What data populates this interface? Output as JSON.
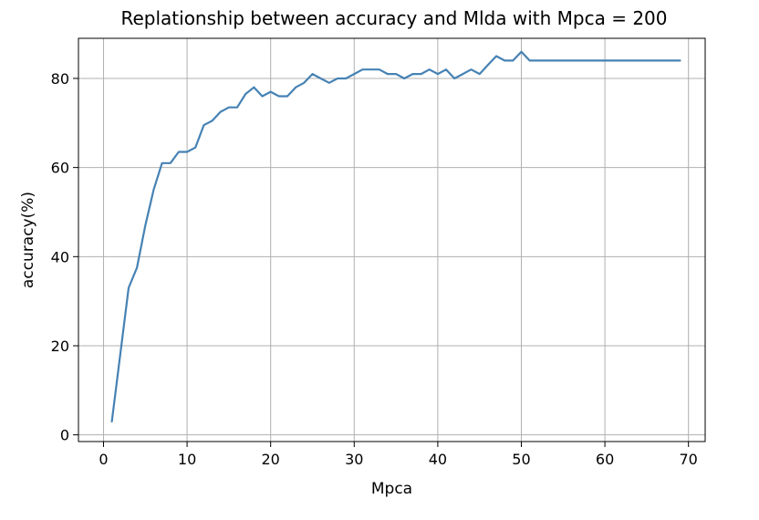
{
  "chart_data": {
    "type": "line",
    "title": "Replationship between accuracy and Mlda with Mpca = 200",
    "xlabel": "Mpca",
    "ylabel": "accuracy(%)",
    "xlim": [
      -3,
      72
    ],
    "ylim": [
      -1.5,
      89
    ],
    "xticks": [
      0,
      10,
      20,
      30,
      40,
      50,
      60,
      70
    ],
    "yticks": [
      0,
      20,
      40,
      60,
      80
    ],
    "xtick_labels": [
      "0",
      "10",
      "20",
      "30",
      "40",
      "50",
      "60",
      "70"
    ],
    "ytick_labels": [
      "0",
      "20",
      "40",
      "60",
      "80"
    ],
    "grid": true,
    "legend": "none",
    "series": [
      {
        "color": "#4682b4",
        "x": [
          1,
          2,
          3,
          4,
          5,
          6,
          7,
          8,
          9,
          10,
          11,
          12,
          13,
          14,
          15,
          16,
          17,
          18,
          19,
          20,
          21,
          22,
          23,
          24,
          25,
          26,
          27,
          28,
          29,
          30,
          31,
          32,
          33,
          34,
          35,
          36,
          37,
          38,
          39,
          40,
          41,
          42,
          43,
          44,
          45,
          46,
          47,
          48,
          49,
          50,
          51,
          52,
          53,
          54,
          55,
          56,
          57,
          58,
          59,
          60,
          61,
          62,
          63,
          64,
          65,
          66,
          67,
          68,
          69
        ],
        "y": [
          3,
          18,
          33,
          37.5,
          47,
          55,
          61,
          61,
          63.5,
          63.5,
          64.5,
          69.5,
          70.5,
          72.5,
          73.5,
          73.5,
          76.5,
          78,
          76,
          77,
          76,
          76,
          78,
          79,
          81,
          80,
          79,
          80,
          80,
          81,
          82,
          82,
          82,
          81,
          81,
          80,
          81,
          81,
          82,
          81,
          82,
          80,
          81,
          82,
          81,
          83,
          85,
          84,
          84,
          86,
          84,
          84,
          84,
          84,
          84,
          84,
          84,
          84,
          84,
          84,
          84,
          84,
          84,
          84,
          84,
          84,
          84,
          84,
          84
        ]
      }
    ]
  }
}
